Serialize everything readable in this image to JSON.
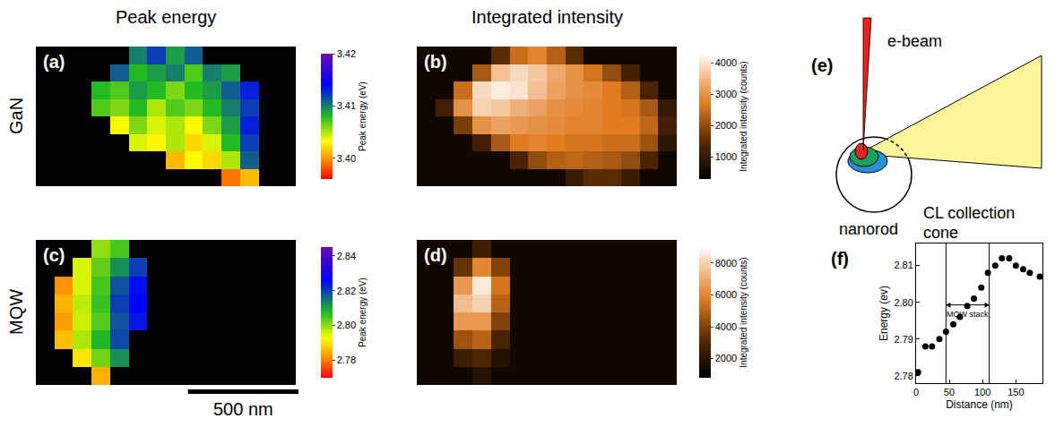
{
  "chart_data": [
    {
      "type": "heatmap",
      "panel": "(a)",
      "row_label": "GaN",
      "column_title": "Peak energy",
      "colorbar_title": "Peak energy (eV)",
      "tick_labels": false,
      "zlim": [
        3.396,
        3.42
      ],
      "zticks": [
        {
          "value": 3.4,
          "label": "3.40"
        },
        3.41,
        3.42
      ],
      "cells": [
        [
          null,
          null,
          null,
          null,
          null,
          3.41,
          3.412,
          3.409,
          3.411,
          null,
          null,
          null,
          null,
          null
        ],
        [
          null,
          null,
          null,
          null,
          3.411,
          3.408,
          3.409,
          3.41,
          3.407,
          3.41,
          3.409,
          null,
          null,
          null
        ],
        [
          null,
          null,
          null,
          3.408,
          3.407,
          3.409,
          3.408,
          3.406,
          3.408,
          3.409,
          3.411,
          3.413,
          null,
          null
        ],
        [
          null,
          null,
          null,
          3.407,
          3.406,
          3.408,
          3.405,
          3.407,
          3.406,
          3.408,
          3.41,
          3.412,
          null,
          null
        ],
        [
          null,
          null,
          null,
          null,
          3.403,
          3.406,
          3.404,
          3.405,
          3.403,
          3.406,
          3.409,
          3.413,
          null,
          null
        ],
        [
          null,
          null,
          null,
          null,
          null,
          3.404,
          3.403,
          3.405,
          3.402,
          3.404,
          3.408,
          3.412,
          null,
          null
        ],
        [
          null,
          null,
          null,
          null,
          null,
          null,
          null,
          3.401,
          3.403,
          3.402,
          3.405,
          3.411,
          null,
          null
        ],
        [
          null,
          null,
          null,
          null,
          null,
          null,
          null,
          null,
          null,
          null,
          3.399,
          3.401,
          null,
          null
        ]
      ]
    },
    {
      "type": "heatmap",
      "panel": "(b)",
      "column_title": "Integrated intensity",
      "colorbar_title": "Integrated intensity (counts)",
      "tick_labels": false,
      "zlim": [
        300,
        4300
      ],
      "zticks": [
        1000,
        2000,
        3000,
        4000
      ],
      "cells": [
        [
          500,
          500,
          500,
          500,
          1500,
          2500,
          2800,
          2300,
          1500,
          500,
          500,
          500,
          500,
          500
        ],
        [
          500,
          500,
          500,
          2200,
          3600,
          3900,
          3700,
          3300,
          3000,
          2600,
          2000,
          1200,
          500,
          500
        ],
        [
          500,
          500,
          2500,
          3900,
          4100,
          4000,
          3600,
          3200,
          3000,
          2900,
          2700,
          2300,
          1300,
          500
        ],
        [
          500,
          1200,
          3000,
          3800,
          3700,
          3400,
          3200,
          3000,
          2900,
          2800,
          2700,
          2600,
          2200,
          1000
        ],
        [
          500,
          500,
          1800,
          3000,
          3200,
          3100,
          3000,
          2900,
          2800,
          2800,
          2700,
          2700,
          2400,
          1200
        ],
        [
          500,
          500,
          500,
          1200,
          2200,
          2700,
          2800,
          2700,
          2600,
          2600,
          2500,
          2500,
          2100,
          900
        ],
        [
          500,
          500,
          500,
          500,
          500,
          1300,
          2000,
          2300,
          2400,
          2300,
          2200,
          2000,
          1300,
          500
        ],
        [
          500,
          500,
          500,
          500,
          500,
          500,
          500,
          500,
          1100,
          1500,
          1500,
          1100,
          500,
          500
        ]
      ]
    },
    {
      "type": "heatmap",
      "panel": "(c)",
      "row_label": "MQW",
      "colorbar_title": "Peak energy (eV)",
      "tick_labels": false,
      "zlim": [
        2.77,
        2.845
      ],
      "zticks": [
        2.78,
        {
          "value": 2.8,
          "label": "2.80"
        },
        2.82,
        2.84
      ],
      "cells": [
        [
          null,
          null,
          null,
          2.8,
          2.805,
          null,
          null,
          null,
          null,
          null,
          null,
          null,
          null,
          null
        ],
        [
          null,
          null,
          2.795,
          2.803,
          2.812,
          2.82,
          null,
          null,
          null,
          null,
          null,
          null,
          null,
          null
        ],
        [
          null,
          2.782,
          2.795,
          2.805,
          2.818,
          2.825,
          null,
          null,
          null,
          null,
          null,
          null,
          null,
          null
        ],
        [
          null,
          2.785,
          2.797,
          2.806,
          2.82,
          2.826,
          null,
          null,
          null,
          null,
          null,
          null,
          null,
          null
        ],
        [
          null,
          2.783,
          2.796,
          2.804,
          2.818,
          2.824,
          null,
          null,
          null,
          null,
          null,
          null,
          null,
          null
        ],
        [
          null,
          2.786,
          2.798,
          2.808,
          2.819,
          null,
          null,
          null,
          null,
          null,
          null,
          null,
          null,
          null
        ],
        [
          null,
          null,
          2.79,
          2.802,
          2.812,
          null,
          null,
          null,
          null,
          null,
          null,
          null,
          null,
          null
        ],
        [
          null,
          null,
          null,
          2.785,
          null,
          null,
          null,
          null,
          null,
          null,
          null,
          null,
          null,
          null
        ]
      ]
    },
    {
      "type": "heatmap",
      "panel": "(d)",
      "colorbar_title": "Integrated intensity (counts)",
      "tick_labels": false,
      "zlim": [
        800,
        9000
      ],
      "zticks": [
        2000,
        4000,
        6000,
        8000
      ],
      "cells": [
        [
          1200,
          1200,
          1200,
          2500,
          1200,
          1200,
          1200,
          1200,
          1200,
          1200,
          1200,
          1200,
          1200,
          1200
        ],
        [
          1200,
          1200,
          3500,
          6000,
          4000,
          1200,
          1200,
          1200,
          1200,
          1200,
          1200,
          1200,
          1200,
          1200
        ],
        [
          1200,
          1200,
          6500,
          8500,
          5500,
          1200,
          1200,
          1200,
          1200,
          1200,
          1200,
          1200,
          1200,
          1200
        ],
        [
          1200,
          1200,
          7500,
          8000,
          5000,
          1200,
          1200,
          1200,
          1200,
          1200,
          1200,
          1200,
          1200,
          1200
        ],
        [
          1200,
          1200,
          6500,
          6500,
          4000,
          1200,
          1200,
          1200,
          1200,
          1200,
          1200,
          1200,
          1200,
          1200
        ],
        [
          1200,
          1200,
          4500,
          5000,
          2800,
          1200,
          1200,
          1200,
          1200,
          1200,
          1200,
          1200,
          1200,
          1200
        ],
        [
          1200,
          1200,
          2500,
          3000,
          1800,
          1200,
          1200,
          1200,
          1200,
          1200,
          1200,
          1200,
          1200,
          1200
        ],
        [
          1200,
          1200,
          1200,
          1800,
          1200,
          1200,
          1200,
          1200,
          1200,
          1200,
          1200,
          1200,
          1200,
          1200
        ]
      ]
    },
    {
      "type": "scatter",
      "panel": "(f)",
      "x_label": "Distance (nm)",
      "y_label": "Energy (ev)",
      "color": "#000000",
      "marker": "circle",
      "grid": false,
      "x": [
        3,
        14,
        24,
        35,
        45,
        56,
        66,
        77,
        87,
        98,
        108,
        119,
        129,
        140,
        150,
        161,
        171,
        186
      ],
      "values": [
        2.781,
        2.788,
        2.788,
        2.79,
        2.792,
        2.794,
        2.796,
        2.799,
        2.801,
        2.804,
        2.808,
        2.81,
        2.812,
        2.812,
        2.81,
        2.809,
        2.808,
        2.807
      ],
      "xlim": [
        0,
        190
      ],
      "xticks": [
        0,
        50,
        100,
        150
      ],
      "ylim": [
        2.778,
        2.816
      ],
      "yticks": [
        2.78,
        2.79,
        {
          "value": 2.8,
          "label": "2.80"
        },
        2.81
      ],
      "spans": [
        {
          "x0": 45,
          "x1": 110,
          "label": "MQW stack"
        }
      ]
    }
  ],
  "scale_bar": {
    "length": 500,
    "label": "500 nm",
    "pixel_size_nm": 84
  },
  "diagram": {
    "panel": "(e)",
    "beam": "e-beam",
    "rod": "nanorod",
    "cone": "CL collection cone"
  }
}
